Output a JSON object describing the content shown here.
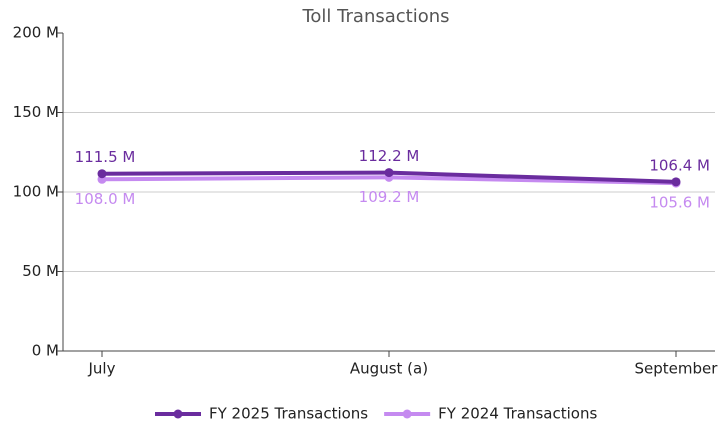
{
  "chart_data": {
    "type": "line",
    "title": "Toll Transactions",
    "categories": [
      "July",
      "August (a)",
      "September"
    ],
    "series": [
      {
        "name": "FY 2025 Transactions",
        "color": "#6a2c9e",
        "values": [
          111.5,
          112.2,
          106.4
        ],
        "value_labels": [
          "111.5 M",
          "112.2 M",
          "106.4 M"
        ]
      },
      {
        "name": "FY 2024 Transactions",
        "color": "#c58af0",
        "values": [
          108.0,
          109.2,
          105.6
        ],
        "value_labels": [
          "108.0 M",
          "109.2 M",
          "105.6 M"
        ]
      }
    ],
    "ylim": [
      0,
      200
    ],
    "yticks": [
      {
        "value": 0,
        "label": "0 M"
      },
      {
        "value": 50,
        "label": "50 M"
      },
      {
        "value": 100,
        "label": "100 M"
      },
      {
        "value": 150,
        "label": "150 M"
      },
      {
        "value": 200,
        "label": "200 M"
      }
    ],
    "grid": true,
    "legend": "bottom"
  }
}
